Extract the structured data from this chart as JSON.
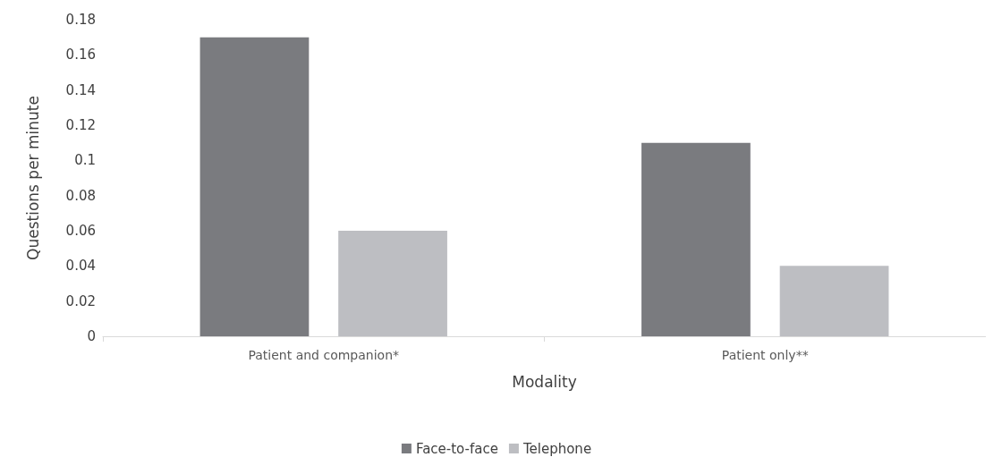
{
  "chart_data": {
    "type": "bar",
    "xlabel": "Modality",
    "ylabel": "Questions per minute",
    "categories": [
      "Patient and companion*",
      "Patient only**"
    ],
    "series": [
      {
        "name": "Face-to-face",
        "color": "#7a7b7f",
        "values": [
          0.17,
          0.11
        ]
      },
      {
        "name": "Telephone",
        "color": "#bdbec2",
        "values": [
          0.06,
          0.04
        ]
      }
    ],
    "ylim": [
      0,
      0.18
    ],
    "yticks": [
      0,
      0.02,
      0.04,
      0.06,
      0.08,
      0.1,
      0.12,
      0.14,
      0.16,
      0.18
    ],
    "legend": "bottom"
  }
}
